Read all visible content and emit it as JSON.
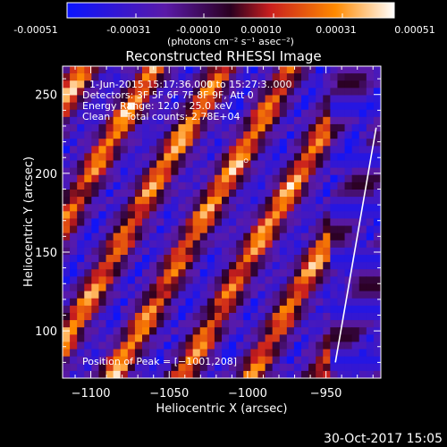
{
  "colorbar": {
    "ticks": [
      "-0.00051",
      "-0.00031",
      "-0.00010",
      "0.00010",
      "0.00031",
      "0.00051"
    ],
    "units_label": "(photons cm⁻² s⁻¹ asec⁻²)",
    "colormap": [
      "#0a14ff",
      "#5a1aa8",
      "#2a0020",
      "#c81e1e",
      "#ff8a00",
      "#ffffff"
    ]
  },
  "chart_data": {
    "type": "heatmap",
    "title": "Reconstructed RHESSI Image",
    "xlabel": "Heliocentric X (arcsec)",
    "ylabel": "Heliocentric Y (arcsec)",
    "xlim": [
      -1118,
      -915
    ],
    "ylim": [
      70,
      268
    ],
    "x_ticks": [
      -1100,
      -1050,
      -1000,
      -950
    ],
    "y_ticks": [
      100,
      150,
      200,
      250
    ],
    "x_tick_labels": [
      "−1100",
      "−1050",
      "−1000",
      "−950"
    ],
    "y_tick_labels": [
      "100",
      "150",
      "200",
      "250"
    ],
    "annotations": [
      "1-Jun-2015 15:17:36.000 to 15:27:3..000",
      "Detectors: 3F 5F 6F 7F 8F 9F, Att 0",
      "Energy Range: 12.0 - 25.0 keV",
      "Clean     Total counts: 2.78E+04"
    ],
    "peak_label": "Position of Peak = [−1001,208]",
    "peak": [
      -1001,
      208
    ],
    "limb_line": [
      [
        -944,
        80
      ],
      [
        -918,
        229
      ]
    ]
  },
  "footer": {
    "timestamp": "30-Oct-2017 15:05"
  }
}
